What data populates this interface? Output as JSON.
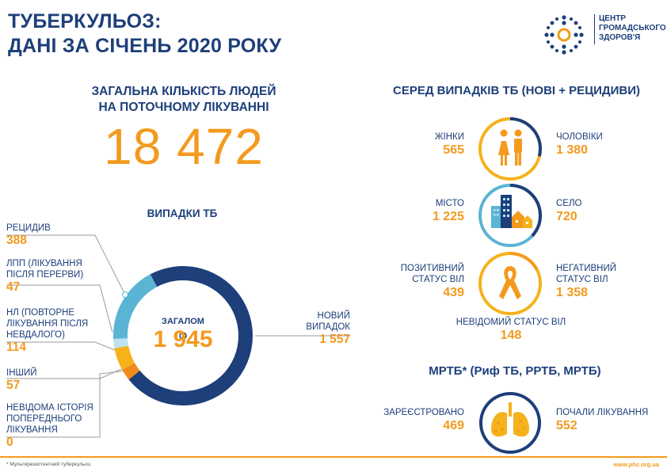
{
  "title": {
    "line1": "ТУБЕРКУЛЬОЗ:",
    "line2": "ДАНІ ЗА СІЧЕНЬ 2020 РОКУ"
  },
  "logo": {
    "line1": "ЦЕНТР",
    "line2": "ГРОМАДСЬКОГО",
    "line3": "ЗДОРОВ'Я"
  },
  "total": {
    "heading_line1": "ЗАГАЛЬНА КІЛЬКІСТЬ ЛЮДЕЙ",
    "heading_line2": "НА ПОТОЧНОМУ ЛІКУВАННІ",
    "value": "18 472"
  },
  "cases": {
    "title": "ВИПАДКИ ТБ",
    "center_label": "ЗАГАЛОМ",
    "center_value": "1 945",
    "segments": [
      {
        "line1": "РЕЦИДИВ",
        "value": "388",
        "count": 388,
        "color": "#5ab4d4"
      },
      {
        "line1": "ЛПП (ЛІКУВАННЯ",
        "line2": "ПІСЛЯ ПЕРЕРВИ)",
        "value": "47",
        "count": 47,
        "color": "#bfe2ee"
      },
      {
        "line1": "НЛ (ПОВТОРНЕ",
        "line2": "ЛІКУВАННЯ ПІСЛЯ",
        "line3": "НЕВДАЛОГО)",
        "value": "114",
        "count": 114,
        "color": "#f6b21b"
      },
      {
        "line1": "ІНШИЙ",
        "value": "57",
        "count": 57,
        "color": "#ef8a1c"
      },
      {
        "line1": "НЕВІДОМА ІСТОРІЯ",
        "line2": "ПОПЕРЕДНЬОГО",
        "line3": "ЛІКУВАННЯ",
        "value": "0",
        "count": 0,
        "color": "#cccccc"
      },
      {
        "line1": "НОВИЙ",
        "line2": "ВИПАДОК",
        "value": "1 557",
        "count": 1557,
        "color": "#1d3f7a"
      }
    ]
  },
  "tb_among": {
    "heading": "СЕРЕД ВИПАДКІВ ТБ (НОВІ + РЕЦИДИВИ)",
    "women": {
      "label": "ЖІНКИ",
      "value": "565"
    },
    "men": {
      "label": "ЧОЛОВІКИ",
      "value": "1 380"
    },
    "city": {
      "label": "МІСТО",
      "value": "1 225"
    },
    "village": {
      "label": "СЕЛО",
      "value": "720"
    },
    "hiv_pos": {
      "line1": "ПОЗИТИВНИЙ",
      "line2": "СТАТУС ВІЛ",
      "value": "439"
    },
    "hiv_neg": {
      "line1": "НЕГАТИВНИЙ",
      "line2": "СТАТУС  ВІЛ",
      "value": "1 358"
    },
    "hiv_unknown": {
      "label": "НЕВІДОМИЙ СТАТУС ВІЛ",
      "value": "148"
    }
  },
  "mdr": {
    "heading": "МРТБ* (Риф ТБ, РРТБ, МРТБ)",
    "registered": {
      "label": "ЗАРЕЄСТРОВАНО",
      "value": "469"
    },
    "started": {
      "label": "ПОЧАЛИ ЛІКУВАННЯ",
      "value": "552"
    }
  },
  "footer": {
    "footnote": "* Мультирезистентний туберкульоз.",
    "site": "www.phc.org.ua"
  },
  "colors": {
    "navy": "#1d3f7a",
    "orange": "#f39a1e",
    "light_blue": "#5ab4d4"
  }
}
